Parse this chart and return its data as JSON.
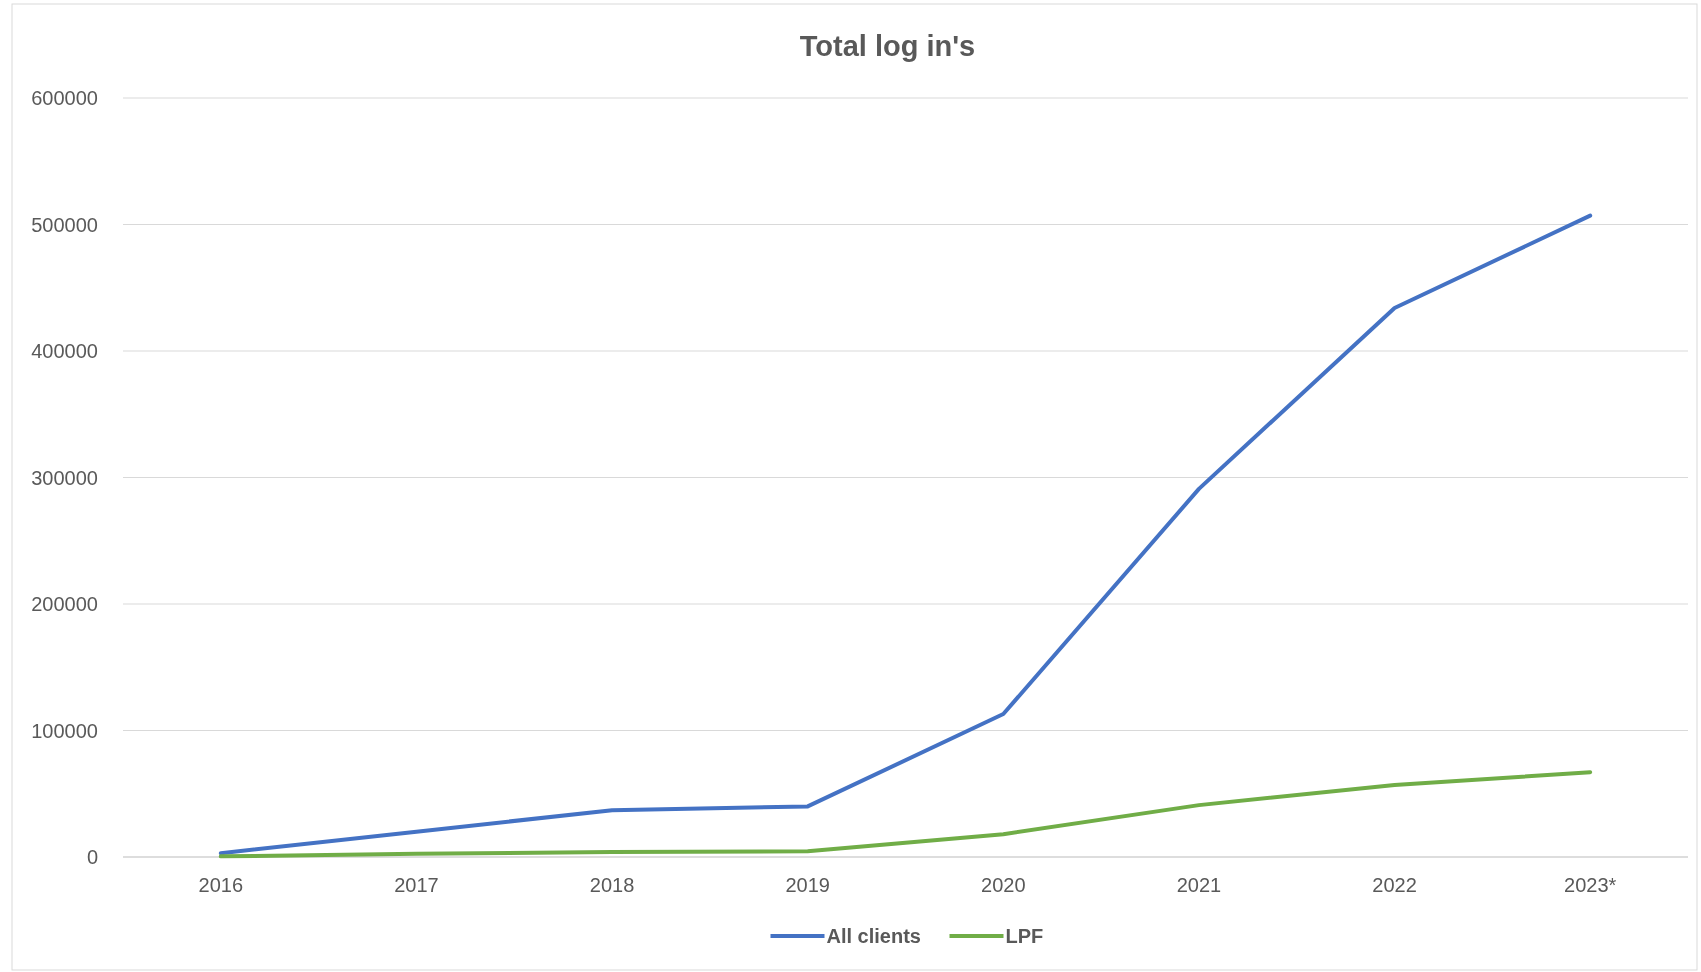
{
  "chart_data": {
    "type": "line",
    "title": "Total log in's",
    "categories": [
      "2016",
      "2017",
      "2018",
      "2019",
      "2020",
      "2021",
      "2022",
      "2023*"
    ],
    "series": [
      {
        "name": "All clients",
        "color": "#4472c4",
        "values": [
          3000,
          20000,
          37000,
          40000,
          113000,
          291000,
          434000,
          507000
        ]
      },
      {
        "name": "LPF",
        "color": "#70ad47",
        "values": [
          500,
          2500,
          4000,
          4500,
          18000,
          41000,
          57000,
          67000
        ]
      }
    ],
    "ylim": [
      0,
      600000
    ],
    "yticks": [
      0,
      100000,
      200000,
      300000,
      400000,
      500000,
      600000
    ],
    "grid": "y",
    "legend": "bottom",
    "marker": "none",
    "line_style": "solid"
  }
}
